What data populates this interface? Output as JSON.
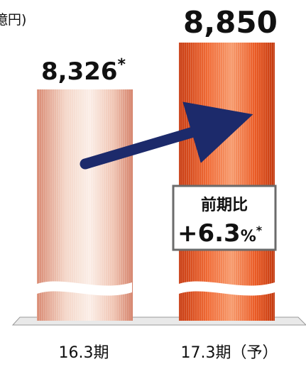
{
  "chart_data": {
    "type": "bar",
    "unit_label": "億円)",
    "categories": [
      "16.3期",
      "17.3期（予）"
    ],
    "values": [
      8326,
      8850
    ],
    "value_labels": [
      "8,326",
      "8,850"
    ],
    "value_marks": [
      "*",
      ""
    ],
    "ylim": [
      0,
      9000
    ],
    "axis_break": true,
    "colors": {
      "bar_1": "#f0c6b4",
      "bar_2": "#ea5a24",
      "arrow": "#1c2a6b"
    },
    "growth_box": {
      "label": "前期比",
      "value": "+6.3",
      "unit": "%",
      "mark": "*"
    }
  }
}
